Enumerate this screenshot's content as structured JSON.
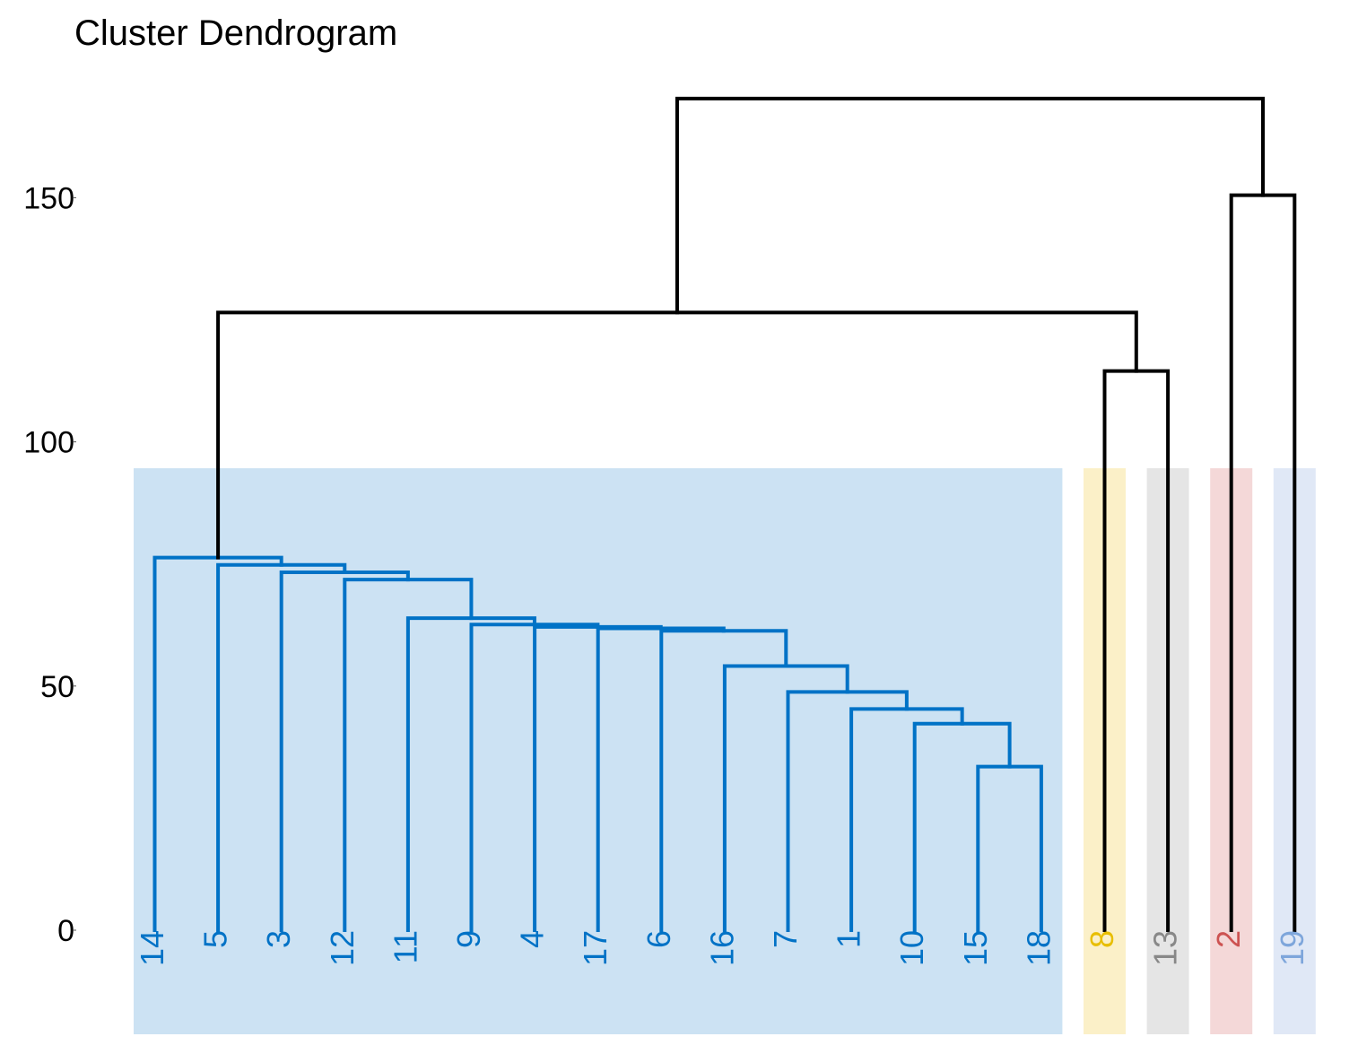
{
  "chart_data": {
    "type": "dendrogram",
    "title": "Cluster Dendrogram",
    "xlabel": "",
    "ylabel": "",
    "ylim": [
      0,
      170
    ],
    "y_ticks": [
      0,
      50,
      100,
      150
    ],
    "grid": false,
    "leaves": [
      "14",
      "5",
      "3",
      "12",
      "11",
      "9",
      "4",
      "17",
      "6",
      "16",
      "7",
      "1",
      "10",
      "15",
      "18",
      "8",
      "13",
      "2",
      "19"
    ],
    "clusters": [
      {
        "leaves": [
          "14",
          "5",
          "3",
          "12",
          "11",
          "9",
          "4",
          "17",
          "6",
          "16",
          "7",
          "1",
          "10",
          "15",
          "18"
        ],
        "color": "#0072C6",
        "band_color": "#CCE2F3"
      },
      {
        "leaves": [
          "8"
        ],
        "color": "#E8BE00",
        "band_color": "#FBF0C8"
      },
      {
        "leaves": [
          "13"
        ],
        "color": "#888888",
        "band_color": "#E5E5E5"
      },
      {
        "leaves": [
          "2"
        ],
        "color": "#CD5352",
        "band_color": "#F4D8D8"
      },
      {
        "leaves": [
          "19"
        ],
        "color": "#7EA6DB",
        "band_color": "#E0E8F6"
      }
    ],
    "merge_color": "#000000",
    "merges": [
      {
        "id": "m1",
        "left": "15",
        "right": "18",
        "height": 33.5
      },
      {
        "id": "m2",
        "left": "10",
        "right": "m1",
        "height": 42.3
      },
      {
        "id": "m3",
        "left": "1",
        "right": "m2",
        "height": 45.3
      },
      {
        "id": "m4",
        "left": "7",
        "right": "m3",
        "height": 48.8
      },
      {
        "id": "m5",
        "left": "16",
        "right": "m4",
        "height": 54.1
      },
      {
        "id": "m6",
        "left": "6",
        "right": "m5",
        "height": 61.3
      },
      {
        "id": "m7",
        "left": "17",
        "right": "m6",
        "height": 61.8
      },
      {
        "id": "m8",
        "left": "4",
        "right": "m7",
        "height": 62.1
      },
      {
        "id": "m9",
        "left": "9",
        "right": "m8",
        "height": 62.6
      },
      {
        "id": "m10",
        "left": "11",
        "right": "m9",
        "height": 63.9
      },
      {
        "id": "m11",
        "left": "12",
        "right": "m10",
        "height": 71.8
      },
      {
        "id": "m12",
        "left": "3",
        "right": "m11",
        "height": 73.3
      },
      {
        "id": "m13",
        "left": "5",
        "right": "m12",
        "height": 74.8
      },
      {
        "id": "m14",
        "left": "14",
        "right": "m13",
        "height": 76.3
      },
      {
        "id": "m15",
        "left": "8",
        "right": "13",
        "height": 114.5
      },
      {
        "id": "m16",
        "left": "m14",
        "right": "m15",
        "height": 126.5
      },
      {
        "id": "m17",
        "left": "2",
        "right": "19",
        "height": 150.5
      },
      {
        "id": "m18",
        "left": "m16",
        "right": "m17",
        "height": 170.3
      }
    ]
  }
}
